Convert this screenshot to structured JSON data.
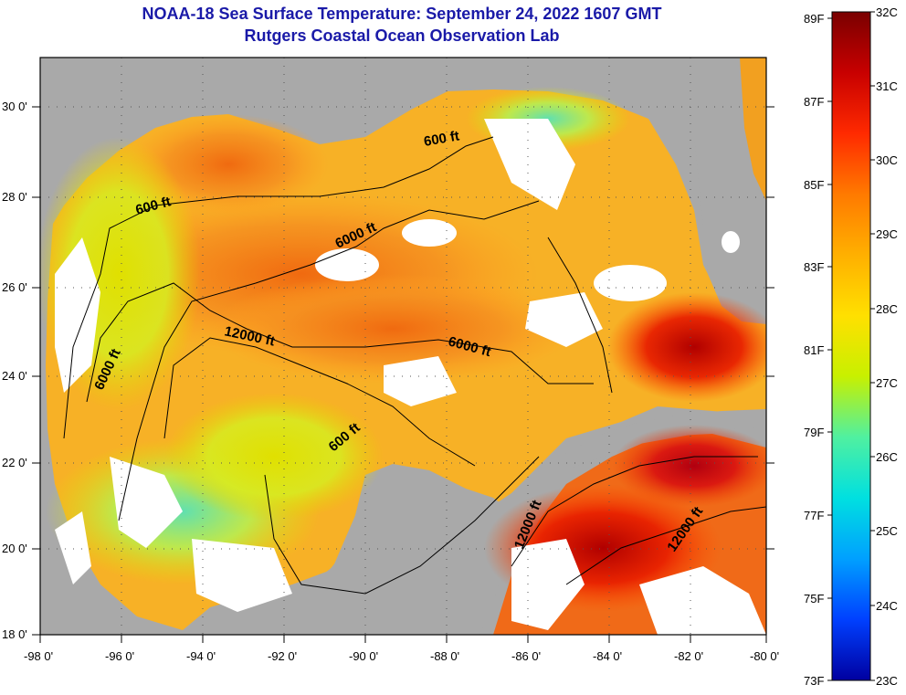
{
  "header": {
    "title_line1": "NOAA-18 Sea Surface Temperature:  September 24, 2022 1607 GMT",
    "title_line2": "Rutgers Coastal Ocean Observation Lab"
  },
  "colors": {
    "land": "#a9a9a9",
    "cloud": "#ffffff",
    "frame": "#000000",
    "title": "#1a1aa8"
  },
  "axes": {
    "longitude_labels": [
      "-98 0'",
      "-96 0'",
      "-94 0'",
      "-92 0'",
      "-90 0'",
      "-88 0'",
      "-86 0'",
      "-84 0'",
      "-82 0'",
      "-80 0'"
    ],
    "latitude_labels": [
      "30 0'",
      "28 0'",
      "26 0'",
      "24 0'",
      "22 0'",
      "20 0'",
      "18 0'"
    ]
  },
  "contours": [
    {
      "label": "600 ft",
      "rotate": -10
    },
    {
      "label": "600 ft",
      "rotate": -15
    },
    {
      "label": "6000 ft",
      "rotate": -25
    },
    {
      "label": "12000 ft",
      "rotate": 12
    },
    {
      "label": "6000 ft",
      "rotate": 15
    },
    {
      "label": "6000 ft",
      "rotate": -65
    },
    {
      "label": "600 ft",
      "rotate": -40
    },
    {
      "label": "12000 ft",
      "rotate": -68
    },
    {
      "label": "12000 ft",
      "rotate": -55
    }
  ],
  "colorbar": {
    "fahrenheit_labels": [
      "89F",
      "87F",
      "85F",
      "83F",
      "81F",
      "79F",
      "77F",
      "75F",
      "73F"
    ],
    "celsius_labels": [
      "32C",
      "31C",
      "30C",
      "29C",
      "28C",
      "27C",
      "26C",
      "25C",
      "24C",
      "23C"
    ],
    "stops": [
      "#7a0000",
      "#c80000",
      "#ff2a00",
      "#ff7a00",
      "#ffb000",
      "#ffe000",
      "#c8f000",
      "#50f0a0",
      "#00e0e0",
      "#00a0ff",
      "#0040ff",
      "#0000a0"
    ]
  }
}
